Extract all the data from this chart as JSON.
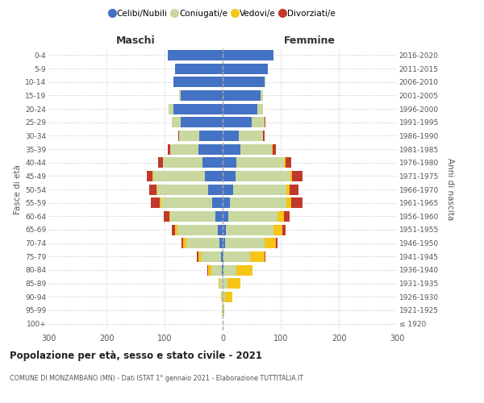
{
  "age_groups": [
    "100+",
    "95-99",
    "90-94",
    "85-89",
    "80-84",
    "75-79",
    "70-74",
    "65-69",
    "60-64",
    "55-59",
    "50-54",
    "45-49",
    "40-44",
    "35-39",
    "30-34",
    "25-29",
    "20-24",
    "15-19",
    "10-14",
    "5-9",
    "0-4"
  ],
  "birth_years": [
    "≤ 1920",
    "1921-1925",
    "1926-1930",
    "1931-1935",
    "1936-1940",
    "1941-1945",
    "1946-1950",
    "1951-1955",
    "1956-1960",
    "1961-1965",
    "1966-1970",
    "1971-1975",
    "1976-1980",
    "1981-1985",
    "1986-1990",
    "1991-1995",
    "1996-2000",
    "2001-2005",
    "2006-2010",
    "2011-2015",
    "2016-2020"
  ],
  "m_celibe": [
    0,
    0,
    0,
    0,
    2,
    3,
    5,
    8,
    12,
    18,
    25,
    30,
    35,
    42,
    40,
    72,
    85,
    72,
    85,
    82,
    95
  ],
  "m_coniugato": [
    0,
    1,
    2,
    5,
    18,
    35,
    58,
    70,
    78,
    88,
    88,
    90,
    68,
    48,
    35,
    15,
    8,
    3,
    0,
    0,
    0
  ],
  "m_vedovo": [
    0,
    0,
    1,
    2,
    5,
    4,
    5,
    4,
    2,
    2,
    1,
    1,
    0,
    0,
    0,
    0,
    0,
    0,
    0,
    0,
    0
  ],
  "m_divorziato": [
    0,
    0,
    0,
    0,
    1,
    2,
    3,
    5,
    10,
    15,
    12,
    10,
    8,
    5,
    2,
    1,
    0,
    0,
    0,
    0,
    0
  ],
  "f_nubile": [
    0,
    0,
    0,
    0,
    1,
    2,
    4,
    6,
    10,
    12,
    18,
    22,
    24,
    30,
    28,
    50,
    60,
    65,
    72,
    78,
    88
  ],
  "f_coniugata": [
    0,
    1,
    4,
    8,
    22,
    45,
    68,
    82,
    85,
    98,
    92,
    95,
    82,
    55,
    42,
    22,
    10,
    5,
    2,
    0,
    0
  ],
  "f_vedova": [
    0,
    2,
    12,
    22,
    28,
    25,
    20,
    15,
    10,
    8,
    5,
    3,
    2,
    1,
    0,
    0,
    0,
    0,
    0,
    0,
    0
  ],
  "f_divorziata": [
    0,
    0,
    0,
    0,
    1,
    2,
    3,
    5,
    10,
    20,
    15,
    18,
    10,
    5,
    2,
    1,
    0,
    0,
    0,
    0,
    0
  ],
  "colors": {
    "celibe_nubile": "#4472c4",
    "coniugato_a": "#c8d8a0",
    "vedovo_a": "#f5c518",
    "divorziato_a": "#c0392b"
  },
  "xlim": 300,
  "title": "Popolazione per età, sesso e stato civile - 2021",
  "subtitle": "COMUNE DI MONZAMBANO (MN) - Dati ISTAT 1° gennaio 2021 - Elaborazione TUTTITALIA.IT",
  "ylabel_left": "Fasce di età",
  "ylabel_right": "Anni di nascita",
  "label_maschi": "Maschi",
  "label_femmine": "Femmine",
  "legend_labels": [
    "Celibi/Nubili",
    "Coniugati/e",
    "Vedovi/e",
    "Divorziati/e"
  ]
}
